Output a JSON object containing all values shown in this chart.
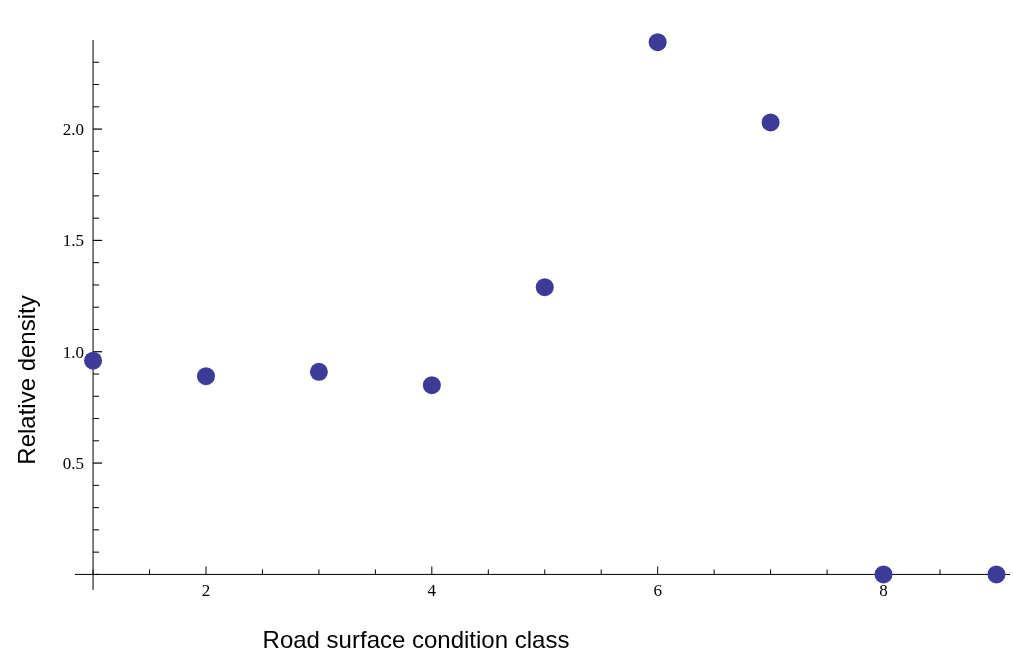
{
  "chart_data": {
    "type": "scatter",
    "xlabel": "Road surface condition class",
    "ylabel": "Relative density",
    "x": [
      1,
      2,
      3,
      4,
      5,
      6,
      7,
      8,
      9
    ],
    "series": [
      {
        "color": "#3c3c98",
        "values": [
          0.96,
          0.89,
          0.91,
          0.85,
          1.29,
          2.39,
          2.03,
          0,
          0
        ]
      }
    ],
    "marker": "circle",
    "grid": false,
    "xlim": [
      0.84,
      9.12
    ],
    "ylim": [
      -0.07,
      2.4
    ],
    "xticks": [
      {
        "value": 1,
        "label": null
      },
      {
        "value": 1.5,
        "label": null
      },
      2,
      {
        "value": 2.5,
        "label": null
      },
      {
        "value": 3,
        "label": null
      },
      {
        "value": 3.5,
        "label": null
      },
      4,
      {
        "value": 4.5,
        "label": null
      },
      {
        "value": 5,
        "label": null
      },
      {
        "value": 5.5,
        "label": null
      },
      6,
      {
        "value": 6.5,
        "label": null
      },
      {
        "value": 7,
        "label": null
      },
      {
        "value": 7.5,
        "label": null
      },
      8,
      {
        "value": 8.5,
        "label": null
      },
      {
        "value": 9,
        "label": null
      }
    ],
    "yticks": [
      0.5,
      {
        "value": 1,
        "label": "1.0"
      },
      1.5,
      {
        "value": 2,
        "label": "2.0"
      }
    ]
  }
}
